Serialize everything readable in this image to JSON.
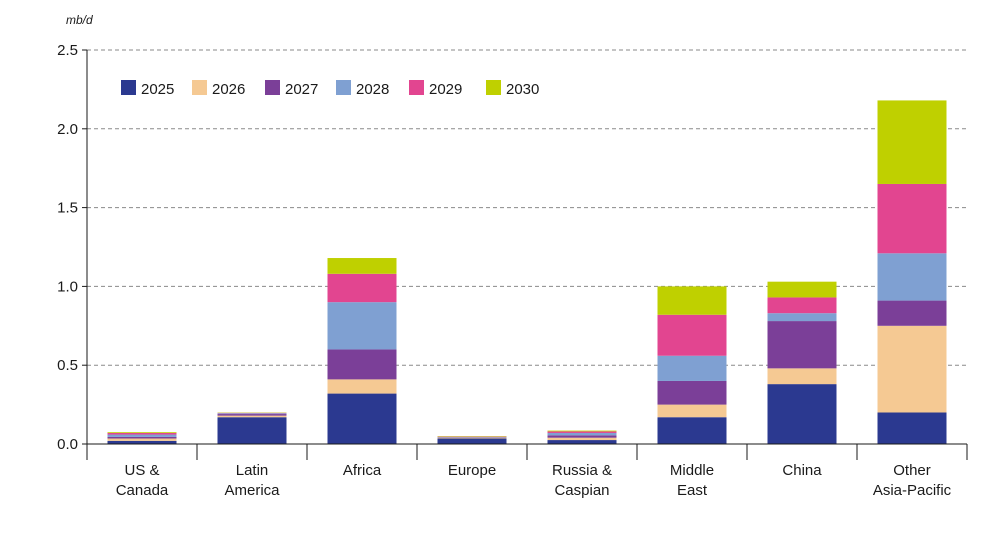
{
  "chart_data": {
    "type": "bar",
    "stacked": true,
    "unit_label": "mb/d",
    "title": "",
    "xlabel": "",
    "ylabel": "",
    "ylim": [
      0,
      2.5
    ],
    "yticks": [
      "0.0",
      "0.5",
      "1.0",
      "1.5",
      "2.0",
      "2.5"
    ],
    "grid": true,
    "legend_position": "top-left",
    "categories": [
      [
        "US &",
        "Canada"
      ],
      [
        "Latin",
        "America"
      ],
      [
        "Africa"
      ],
      [
        "Europe"
      ],
      [
        "Russia &",
        "Caspian"
      ],
      [
        "Middle",
        "East"
      ],
      [
        "China"
      ],
      [
        "Other",
        "Asia-Pacific"
      ]
    ],
    "series": [
      {
        "name": "2025",
        "color": "#2b3990",
        "values": [
          0.02,
          0.17,
          0.32,
          0.035,
          0.025,
          0.17,
          0.38,
          0.2
        ]
      },
      {
        "name": "2026",
        "color": "#f5c993",
        "values": [
          0.015,
          0.01,
          0.09,
          0.005,
          0.015,
          0.08,
          0.1,
          0.55
        ]
      },
      {
        "name": "2027",
        "color": "#7b3f98",
        "values": [
          0.01,
          0.01,
          0.19,
          0.003,
          0.015,
          0.15,
          0.3,
          0.16
        ]
      },
      {
        "name": "2028",
        "color": "#7fa0d2",
        "values": [
          0.015,
          0.005,
          0.3,
          0.002,
          0.015,
          0.16,
          0.05,
          0.3
        ]
      },
      {
        "name": "2029",
        "color": "#e24590",
        "values": [
          0.01,
          0.003,
          0.18,
          0.002,
          0.01,
          0.26,
          0.1,
          0.44
        ]
      },
      {
        "name": "2030",
        "color": "#bfd000",
        "values": [
          0.005,
          0.002,
          0.1,
          0.003,
          0.005,
          0.18,
          0.1,
          0.53
        ]
      }
    ]
  }
}
